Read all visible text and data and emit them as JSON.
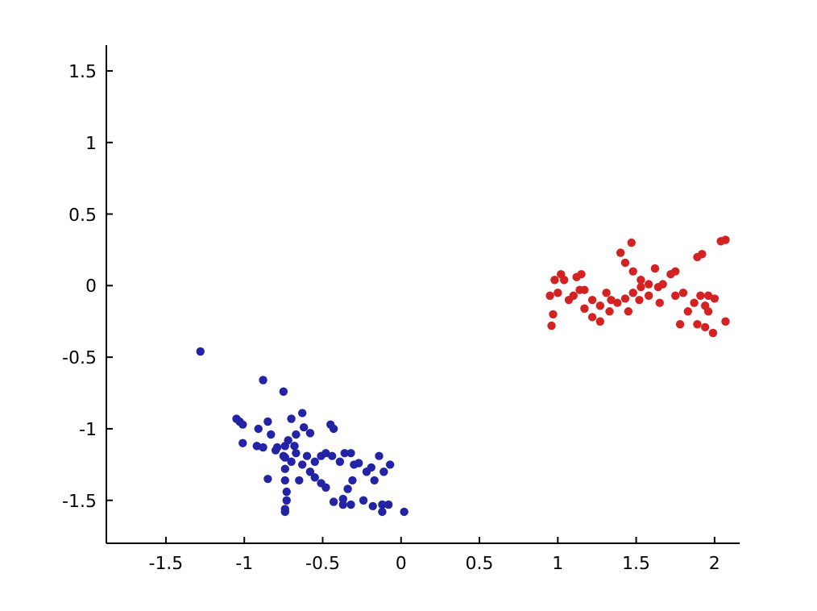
{
  "chart_data": {
    "type": "scatter",
    "xlim": [
      -1.88,
      2.16
    ],
    "ylim": [
      -1.8,
      1.68
    ],
    "xticks": [
      -1.5,
      -1,
      -0.5,
      0,
      0.5,
      1,
      1.5,
      2
    ],
    "yticks": [
      -1.5,
      -1,
      -0.5,
      0,
      0.5,
      1,
      1.5
    ],
    "marker": "circle",
    "series": [
      {
        "color": "#2323a6",
        "x": [
          -1.28,
          -0.88,
          -0.75,
          -1.05,
          -1.03,
          -1.01,
          -1.01,
          -0.91,
          -0.85,
          -0.83,
          -0.92,
          -0.88,
          -0.85,
          -0.7,
          -0.67,
          -0.63,
          -0.62,
          -0.58,
          -0.45,
          -0.43,
          -0.74,
          -0.74,
          -0.74,
          -0.74,
          -0.73,
          -0.73,
          -0.74,
          -0.74,
          -0.79,
          -0.75,
          -0.7,
          -0.67,
          -0.63,
          -0.6,
          -0.55,
          -0.51,
          -0.48,
          -0.44,
          -0.58,
          -0.55,
          -0.51,
          -0.48,
          -0.65,
          -0.8,
          -0.68,
          -0.72,
          -0.39,
          -0.36,
          -0.32,
          -0.3,
          -0.27,
          -0.22,
          -0.19,
          -0.14,
          -0.11,
          -0.07,
          -0.17,
          -0.31,
          -0.34,
          -0.37,
          -0.43,
          -0.37,
          -0.32,
          -0.24,
          -0.18,
          -0.12,
          -0.08,
          -0.12,
          0.02
        ],
        "values": [
          -0.46,
          -0.66,
          -0.74,
          -0.93,
          -0.95,
          -0.97,
          -1.1,
          -1.0,
          -0.95,
          -1.04,
          -1.12,
          -1.13,
          -1.35,
          -0.93,
          -1.04,
          -0.89,
          -0.99,
          -1.03,
          -0.97,
          -1.0,
          -1.12,
          -1.2,
          -1.28,
          -1.36,
          -1.44,
          -1.5,
          -1.56,
          -1.58,
          -1.13,
          -1.19,
          -1.23,
          -1.17,
          -1.25,
          -1.19,
          -1.23,
          -1.19,
          -1.17,
          -1.19,
          -1.3,
          -1.34,
          -1.38,
          -1.41,
          -1.36,
          -1.15,
          -1.12,
          -1.08,
          -1.23,
          -1.17,
          -1.17,
          -1.25,
          -1.24,
          -1.3,
          -1.27,
          -1.19,
          -1.3,
          -1.25,
          -1.36,
          -1.36,
          -1.42,
          -1.49,
          -1.51,
          -1.53,
          -1.53,
          -1.5,
          -1.54,
          -1.53,
          -1.53,
          -1.58,
          -1.58
        ]
      },
      {
        "color": "#d42222",
        "x": [
          0.96,
          0.97,
          0.95,
          0.98,
          1.02,
          1.04,
          1.12,
          1.15,
          1.0,
          1.07,
          1.1,
          1.17,
          1.22,
          1.27,
          1.33,
          1.38,
          1.43,
          1.48,
          1.53,
          1.58,
          1.64,
          1.65,
          1.4,
          1.47,
          1.43,
          1.48,
          1.53,
          1.22,
          1.17,
          1.31,
          1.34,
          1.27,
          1.72,
          1.75,
          1.75,
          1.8,
          1.78,
          1.83,
          1.87,
          1.91,
          1.96,
          2.0,
          1.94,
          1.89,
          1.94,
          1.99,
          2.07,
          1.96,
          1.89,
          1.92,
          2.04,
          2.07,
          1.58,
          1.62,
          1.67,
          1.14,
          1.45,
          1.52
        ],
        "values": [
          -0.28,
          -0.2,
          -0.07,
          0.04,
          0.08,
          0.04,
          0.06,
          0.08,
          -0.05,
          -0.1,
          -0.07,
          -0.03,
          -0.1,
          -0.14,
          -0.18,
          -0.12,
          -0.09,
          -0.05,
          -0.01,
          -0.07,
          -0.01,
          -0.12,
          0.23,
          0.3,
          0.16,
          0.1,
          0.04,
          -0.22,
          -0.16,
          -0.05,
          -0.1,
          -0.25,
          0.08,
          0.1,
          -0.07,
          -0.05,
          -0.27,
          -0.18,
          -0.12,
          -0.07,
          -0.07,
          -0.09,
          -0.14,
          -0.27,
          -0.29,
          -0.33,
          -0.25,
          -0.18,
          0.2,
          0.22,
          0.31,
          0.32,
          0.01,
          0.12,
          0.01,
          -0.03,
          -0.18,
          -0.1
        ]
      }
    ]
  }
}
